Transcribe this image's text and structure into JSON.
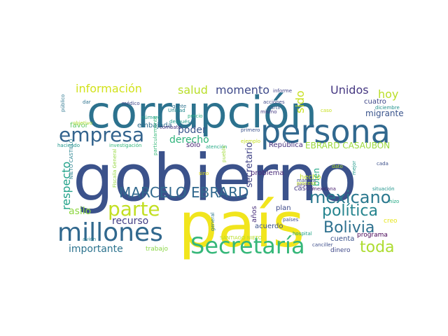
{
  "words": [
    {
      "text": "gobierno",
      "color": "#3b528b"
    },
    {
      "text": "país",
      "color": "#f1e51d"
    },
    {
      "text": "corrupción",
      "color": "#2c728e"
    },
    {
      "text": "persona",
      "color": "#31688e"
    },
    {
      "text": "empresa",
      "color": "#33638d"
    },
    {
      "text": "millones",
      "color": "#31688e"
    },
    {
      "text": "Secretaría",
      "color": "#35b779"
    },
    {
      "text": "parte",
      "color": "#c2df23"
    },
    {
      "text": "MARCELO EBRARD",
      "color": "#31688e"
    },
    {
      "text": "mexicano",
      "color": "#2a788e"
    },
    {
      "text": "política",
      "color": "#25848e"
    },
    {
      "text": "Bolivia",
      "color": "#2d708e"
    },
    {
      "text": "toda",
      "color": "#addc30"
    },
    {
      "text": "información",
      "color": "#d2e21b"
    },
    {
      "text": "salud",
      "color": "#b8de29"
    },
    {
      "text": "momento",
      "color": "#3e4989"
    },
    {
      "text": "Unidos",
      "color": "#453781"
    },
    {
      "text": "hoy",
      "color": "#bade28"
    },
    {
      "text": "sido",
      "color": "#c8e020"
    },
    {
      "text": "poder",
      "color": "#39568c"
    },
    {
      "text": "derecho",
      "color": "#2fb47c"
    },
    {
      "text": "respecto",
      "color": "#1fa188"
    },
    {
      "text": "asilo",
      "color": "#8fd744"
    },
    {
      "text": "recurso",
      "color": "#433e85"
    },
    {
      "text": "importante",
      "color": "#2c738e"
    },
    {
      "text": "secretario",
      "color": "#414487"
    },
    {
      "text": "EBRARD CASAUBÓN",
      "color": "#9bd93c"
    },
    {
      "text": "República",
      "color": "#46307e"
    },
    {
      "text": "sólo",
      "color": "#482374"
    },
    {
      "text": "bien",
      "color": "#22a785"
    },
    {
      "text": "migrante",
      "color": "#3a548c"
    },
    {
      "text": "cuatro",
      "color": "#3f4788"
    },
    {
      "text": "embajada",
      "color": "#2e6f8e"
    },
    {
      "text": "favor",
      "color": "#5ec962"
    },
    {
      "text": "problema",
      "color": "#482878"
    },
    {
      "text": "hecho",
      "color": "#c0df25"
    },
    {
      "text": "casos",
      "color": "#453882"
    },
    {
      "text": "acuerdo",
      "color": "#3b518b"
    },
    {
      "text": "años",
      "color": "#472d7b"
    },
    {
      "text": "plan",
      "color": "#3e4a89"
    },
    {
      "text": "cuenta",
      "color": "#3b528b"
    },
    {
      "text": "programa",
      "color": "#440154"
    },
    {
      "text": "dinero",
      "color": "#3f4889"
    },
    {
      "text": "creo",
      "color": "#e5e419"
    },
    {
      "text": "trabajo",
      "color": "#8bd646"
    },
    {
      "text": "informe",
      "color": "#414287"
    },
    {
      "text": "acciones",
      "color": "#3e4989"
    },
    {
      "text": "partir",
      "color": "#38588c"
    },
    {
      "text": "mismo",
      "color": "#443a83"
    },
    {
      "text": "primero",
      "color": "#3b528b"
    },
    {
      "text": "público",
      "color": "#2a768e"
    },
    {
      "text": "dar",
      "color": "#2c718e"
    },
    {
      "text": "médico",
      "color": "#3f4788"
    },
    {
      "text": "gente",
      "color": "#2c728e"
    },
    {
      "text": "Unidad",
      "color": "#23888e"
    },
    {
      "text": "número",
      "color": "#1f9e89"
    },
    {
      "text": "precio",
      "color": "#26ad81"
    },
    {
      "text": "después",
      "color": "#1e9b8a"
    },
    {
      "text": "objetivo",
      "color": "#addc30"
    },
    {
      "text": "combate",
      "color": "#46337f"
    },
    {
      "text": "haciendo",
      "color": "#1f958b"
    },
    {
      "text": "investigación",
      "color": "#32b67a"
    },
    {
      "text": "ejemplo",
      "color": "#c5e021"
    },
    {
      "text": "atención",
      "color": "#22a884"
    },
    {
      "text": "particularmente",
      "color": "#37b878"
    },
    {
      "text": "pueblo",
      "color": "#a0da39"
    },
    {
      "text": "sino",
      "color": "#e7e419"
    },
    {
      "text": "NIETO CASTILLO",
      "color": "#26818e"
    },
    {
      "text": "Fiscalía General",
      "color": "#95d840"
    },
    {
      "text": "dato",
      "color": "#b0dd2f"
    },
    {
      "text": "mejor",
      "color": "#1f9a8a"
    },
    {
      "text": "cada",
      "color": "#3c4f8a"
    },
    {
      "text": "situación",
      "color": "#1f948c"
    },
    {
      "text": "hizo",
      "color": "#22a884"
    },
    {
      "text": "diciembre",
      "color": "#20928c"
    },
    {
      "text": "caso",
      "color": "#c8e020"
    },
    {
      "text": "mexicana",
      "color": "#481f70"
    },
    {
      "text": "pesos",
      "color": "#472f7d"
    },
    {
      "text": "manera",
      "color": "#3d4d8a"
    },
    {
      "text": "proceso",
      "color": "#c0df25"
    },
    {
      "text": "hospital",
      "color": "#20a386"
    },
    {
      "text": "países",
      "color": "#3e4c8a"
    },
    {
      "text": "canciller",
      "color": "#3d4e8a"
    },
    {
      "text": "avión",
      "color": "#277f8e"
    },
    {
      "text": "general",
      "color": "#2a778e"
    },
    {
      "text": "SANTIAGO NIETO",
      "color": "#bade28"
    }
  ]
}
